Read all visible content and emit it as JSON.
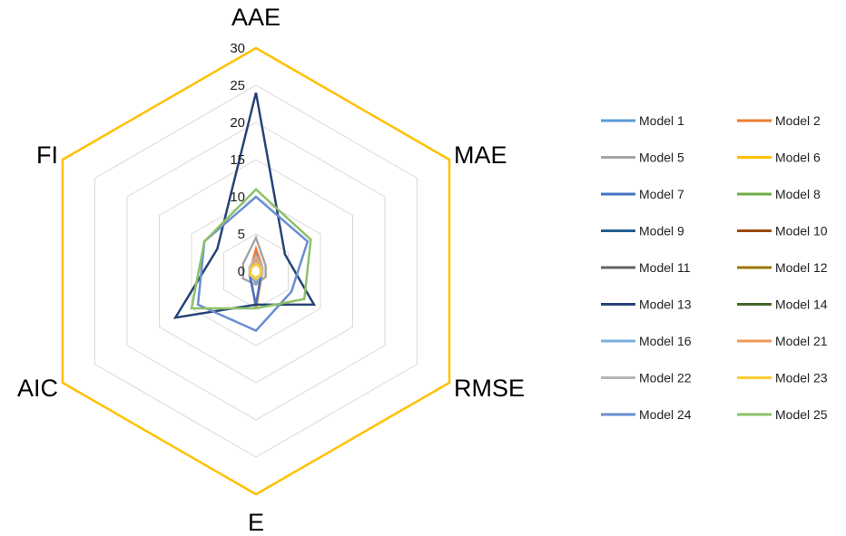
{
  "chart_data": {
    "type": "radar",
    "axes": [
      "AAE",
      "MAE",
      "RMSE",
      "E",
      "AIC",
      "FI"
    ],
    "rlim": [
      0,
      30
    ],
    "ticks": [
      0,
      5,
      10,
      15,
      20,
      25,
      30
    ],
    "grid": true,
    "legend_position": "right",
    "series": [
      {
        "name": "Model 1",
        "color": "#5b9bd5",
        "values": [
          2.5,
          0.8,
          0.8,
          1.5,
          1.0,
          0.8
        ]
      },
      {
        "name": "Model 2",
        "color": "#ed7d31",
        "values": [
          3.0,
          1.0,
          0.9,
          5.0,
          0.9,
          0.8
        ]
      },
      {
        "name": "Model 5",
        "color": "#a5a5a5",
        "values": [
          4.5,
          1.5,
          1.5,
          1.8,
          2.0,
          2.0
        ]
      },
      {
        "name": "Model 6",
        "color": "#ffc000",
        "values": [
          30,
          30,
          30,
          30,
          30,
          30
        ]
      },
      {
        "name": "Model 7",
        "color": "#4472c4",
        "values": [
          1.5,
          0.9,
          0.8,
          4.5,
          1.0,
          0.8
        ]
      },
      {
        "name": "Model 8",
        "color": "#70ad47",
        "values": [
          1.2,
          0.9,
          0.8,
          1.0,
          0.9,
          0.8
        ]
      },
      {
        "name": "Model 9",
        "color": "#255e91",
        "values": [
          1.0,
          0.8,
          0.8,
          1.0,
          1.0,
          0.8
        ]
      },
      {
        "name": "Model 10",
        "color": "#9e480e",
        "values": [
          1.5,
          0.9,
          0.9,
          1.2,
          1.0,
          0.9
        ]
      },
      {
        "name": "Model 11",
        "color": "#636363",
        "values": [
          1.2,
          0.8,
          0.8,
          1.0,
          0.9,
          0.8
        ]
      },
      {
        "name": "Model 12",
        "color": "#997300",
        "values": [
          1.0,
          0.8,
          0.8,
          1.0,
          0.9,
          0.8
        ]
      },
      {
        "name": "Model 13",
        "color": "#264478",
        "values": [
          24,
          4.5,
          9,
          4.5,
          12.5,
          6
        ]
      },
      {
        "name": "Model 14",
        "color": "#43682b",
        "values": [
          1.0,
          0.8,
          0.8,
          1.0,
          1.0,
          0.8
        ]
      },
      {
        "name": "Model 16",
        "color": "#7cafdd",
        "values": [
          1.2,
          0.9,
          0.8,
          1.0,
          1.0,
          0.8
        ]
      },
      {
        "name": "Model 21",
        "color": "#f1975a",
        "values": [
          1.5,
          1.0,
          0.9,
          1.2,
          1.0,
          0.9
        ]
      },
      {
        "name": "Model 22",
        "color": "#b7b7b7",
        "values": [
          2.0,
          1.0,
          1.0,
          1.2,
          1.0,
          1.0
        ]
      },
      {
        "name": "Model 23",
        "color": "#ffcd33",
        "values": [
          1.0,
          0.8,
          0.8,
          1.0,
          0.9,
          0.8
        ]
      },
      {
        "name": "Model 24",
        "color": "#698ed0",
        "values": [
          10,
          8,
          5.5,
          8,
          9,
          8
        ]
      },
      {
        "name": "Model 25",
        "color": "#8cc168",
        "values": [
          11,
          8.5,
          7.5,
          5,
          10,
          8
        ]
      }
    ]
  }
}
